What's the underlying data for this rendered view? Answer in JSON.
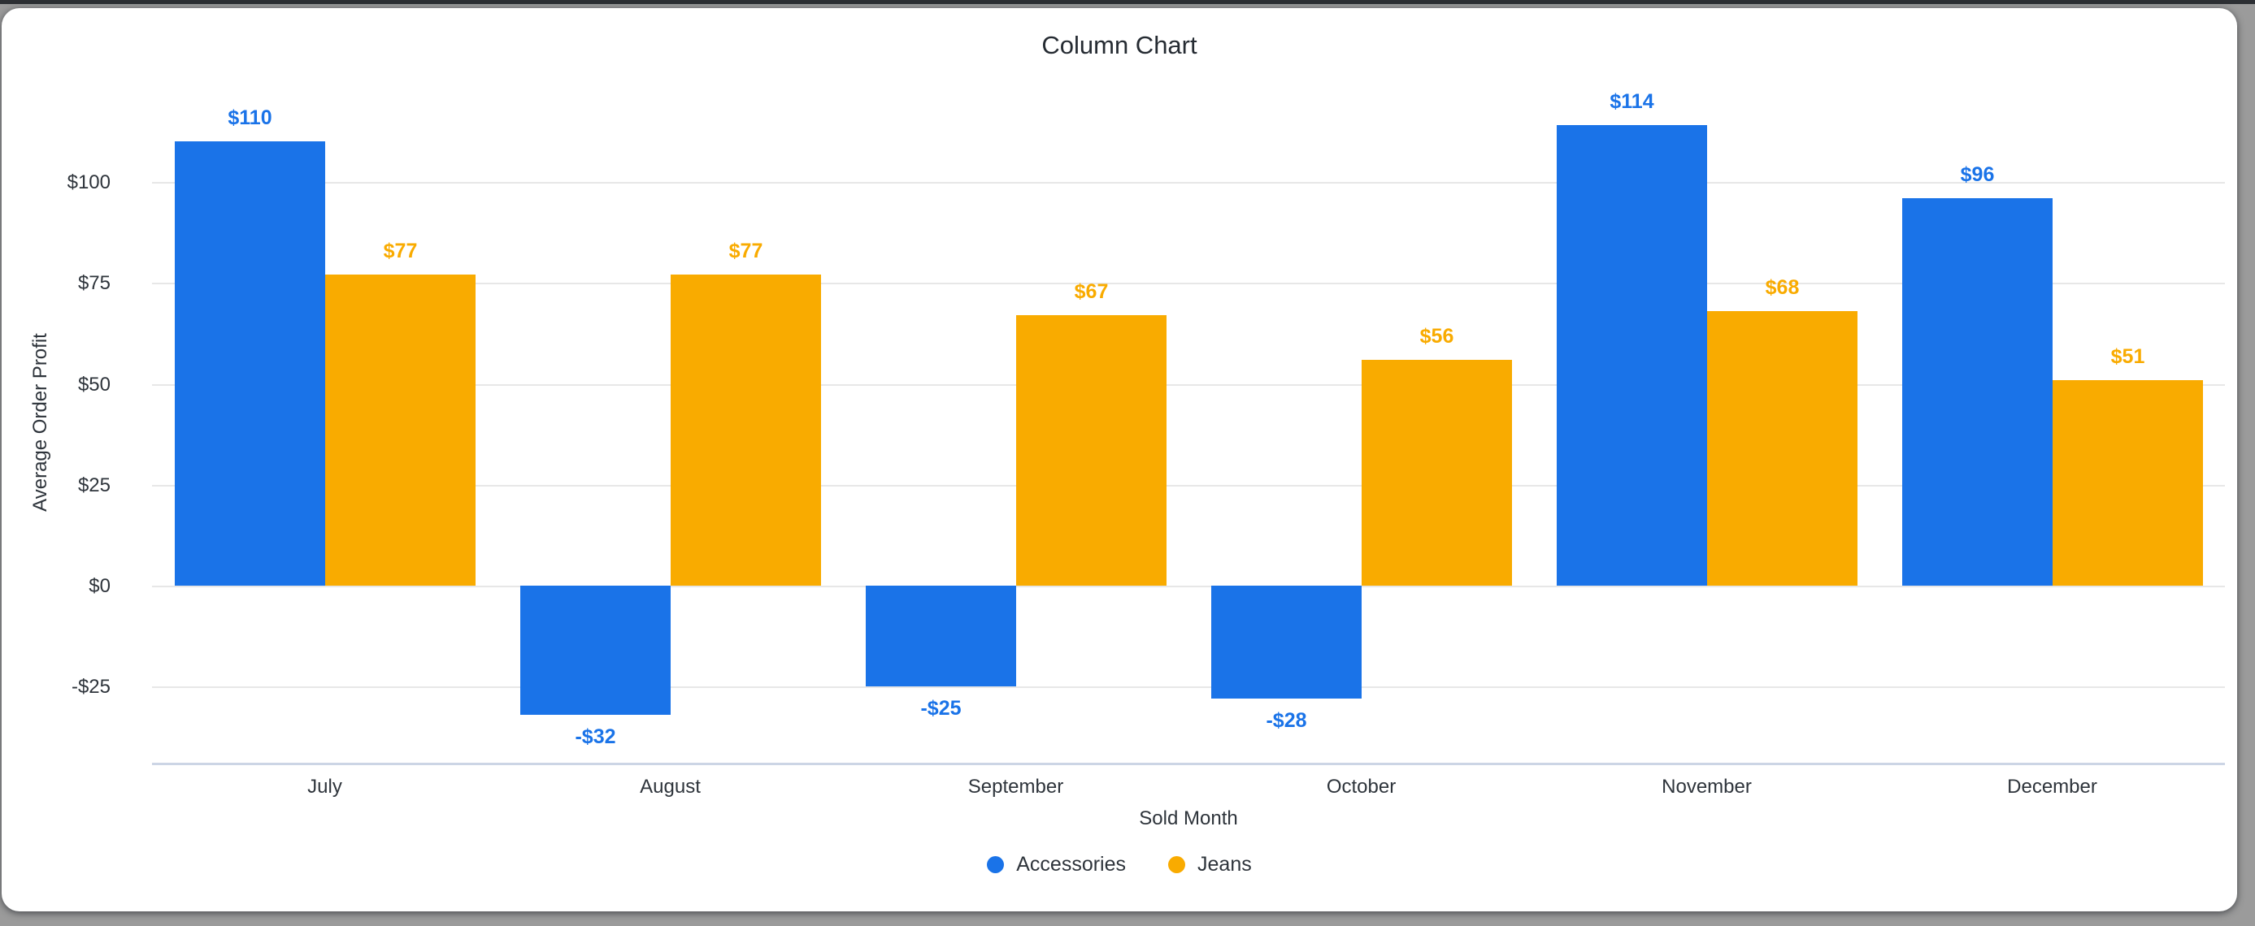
{
  "window": {
    "background_color": "#9b9b9b",
    "top_edge_color": "#2c2f33",
    "card_background_color": "#ffffff"
  },
  "chart_data": {
    "type": "bar",
    "title": "Column Chart",
    "xlabel": "Sold Month",
    "ylabel": "Average Order Profit",
    "categories": [
      "July",
      "August",
      "September",
      "October",
      "November",
      "December"
    ],
    "series": [
      {
        "name": "Accessories",
        "color": "#1a73e8",
        "values": [
          110,
          -32,
          -25,
          -28,
          114,
          96
        ],
        "value_labels": [
          "$110",
          "-$32",
          "-$25",
          "-$28",
          "$114",
          "$96"
        ]
      },
      {
        "name": "Jeans",
        "color": "#f9ab00",
        "values": [
          77,
          77,
          67,
          56,
          68,
          51
        ],
        "value_labels": [
          "$77",
          "$77",
          "$67",
          "$56",
          "$68",
          "$51"
        ]
      }
    ],
    "y_ticks": {
      "values": [
        100,
        75,
        50,
        25,
        0,
        -25
      ],
      "labels": [
        "$100",
        "$75",
        "$50",
        "$25",
        "$0",
        "-$25"
      ]
    },
    "ylim": [
      -44,
      125
    ],
    "grid": "horizontal-only",
    "gridline_color": "#e7e7e7",
    "axis_line_color": "#ccd5e5",
    "text_color": "#2e343b",
    "legend_position": "bottom"
  }
}
